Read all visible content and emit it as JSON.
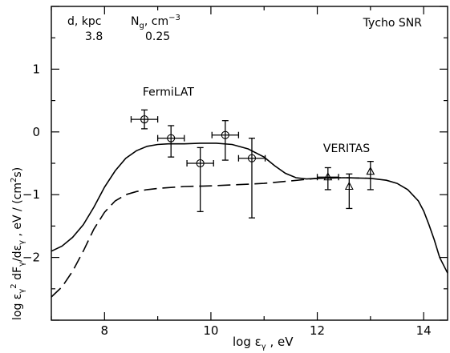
{
  "chart_data": {
    "type": "scatter",
    "title": "Tycho SNR",
    "xlabel": "log ε_γ ,  eV",
    "ylabel": "log ε_γ² dF_γ/dε_γ , eV / (cm²s)",
    "xlim": [
      7.0,
      14.45
    ],
    "ylim": [
      -3.0,
      2.0
    ],
    "x_ticks": [
      8,
      10,
      12,
      14
    ],
    "y_ticks": [
      -2,
      -1,
      0,
      1
    ],
    "grid": false,
    "legend": "none",
    "params": {
      "d_label": "d, kpc",
      "d_value": "3.8",
      "n_label": "N",
      "n_sub": "g",
      "n_unit": ", cm",
      "n_exp": "−3",
      "n_value": "0.25"
    },
    "series": [
      {
        "name": "FermiLAT",
        "marker": "circle",
        "points": [
          {
            "x": 8.75,
            "y": 0.2,
            "xerr": 0.25,
            "ylo": 0.05,
            "yhi": 0.35
          },
          {
            "x": 9.25,
            "y": -0.1,
            "xerr": 0.25,
            "ylo": -0.4,
            "yhi": 0.1
          },
          {
            "x": 9.8,
            "y": -0.5,
            "xerr": 0.25,
            "ylo": -1.27,
            "yhi": -0.25
          },
          {
            "x": 10.27,
            "y": -0.05,
            "xerr": 0.25,
            "ylo": -0.45,
            "yhi": 0.18
          },
          {
            "x": 10.77,
            "y": -0.42,
            "xerr": 0.25,
            "ylo": -1.37,
            "yhi": -0.1
          }
        ]
      },
      {
        "name": "VERITAS",
        "marker": "triangle",
        "points": [
          {
            "x": 12.2,
            "y": -0.72,
            "xerr": 0.2,
            "ylo": -0.92,
            "yhi": -0.57
          },
          {
            "x": 12.6,
            "y": -0.87,
            "xerr": 0.0,
            "ylo": -1.22,
            "yhi": -0.67
          },
          {
            "x": 13.0,
            "y": -0.63,
            "xerr": 0.0,
            "ylo": -0.92,
            "yhi": -0.47
          }
        ]
      }
    ],
    "curves": [
      {
        "style": "solid",
        "x": [
          7.0,
          7.2,
          7.4,
          7.6,
          7.8,
          8.0,
          8.2,
          8.4,
          8.6,
          8.8,
          9.0,
          9.2,
          9.5,
          9.8,
          10.1,
          10.4,
          10.7,
          11.0,
          11.2,
          11.4,
          11.6,
          11.8,
          12.0,
          12.5,
          13.0,
          13.3,
          13.5,
          13.7,
          13.9,
          14.0,
          14.1,
          14.2,
          14.3,
          14.45
        ],
        "y": [
          -1.9,
          -1.82,
          -1.68,
          -1.48,
          -1.2,
          -0.88,
          -0.62,
          -0.42,
          -0.3,
          -0.23,
          -0.2,
          -0.19,
          -0.19,
          -0.18,
          -0.18,
          -0.2,
          -0.27,
          -0.4,
          -0.54,
          -0.66,
          -0.73,
          -0.75,
          -0.74,
          -0.73,
          -0.74,
          -0.77,
          -0.82,
          -0.92,
          -1.1,
          -1.26,
          -1.48,
          -1.72,
          -2.0,
          -2.25
        ]
      },
      {
        "style": "dashed",
        "x": [
          7.0,
          7.2,
          7.4,
          7.6,
          7.8,
          8.0,
          8.2,
          8.4,
          8.6,
          8.8,
          9.0,
          9.5,
          10.0,
          10.5,
          11.0,
          11.5,
          12.0,
          12.5,
          13.0
        ],
        "y": [
          -2.63,
          -2.47,
          -2.22,
          -1.9,
          -1.55,
          -1.28,
          -1.1,
          -1.0,
          -0.95,
          -0.92,
          -0.9,
          -0.87,
          -0.86,
          -0.84,
          -0.82,
          -0.78,
          -0.74,
          -0.73,
          -0.74
        ]
      }
    ],
    "annotations": [
      {
        "text": "FermiLAT",
        "x": 9.2,
        "y": 0.58
      },
      {
        "text": "VERITAS",
        "x": 12.55,
        "y": -0.32
      }
    ]
  }
}
